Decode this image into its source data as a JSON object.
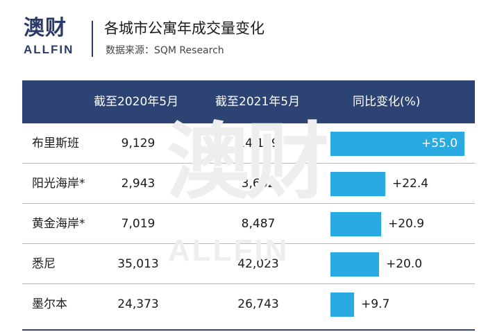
{
  "brand": {
    "logo_cn": "澳财",
    "logo_en": "ALLFIN",
    "watermark_cn": "澳财",
    "watermark_en": "ALLFIN"
  },
  "header": {
    "title": "各城市公寓年成交量变化",
    "source": "数据来源：SQM Research"
  },
  "colors": {
    "header_bg": "#2d4374",
    "bar": "#29aae1",
    "brand": "#2a3a6a"
  },
  "chart_data": {
    "type": "table",
    "columns": [
      "",
      "截至2020年5月",
      "截至2021年5月",
      "同比变化(%)"
    ],
    "rows": [
      {
        "city": "布里斯班",
        "v2020": "9,129",
        "v2021": "14,149",
        "change": 55.0,
        "label": "+55.0"
      },
      {
        "city": "阳光海岸*",
        "v2020": "2,943",
        "v2021": "3,602",
        "change": 22.4,
        "label": "+22.4"
      },
      {
        "city": "黄金海岸*",
        "v2020": "7,019",
        "v2021": "8,487",
        "change": 20.9,
        "label": "+20.9"
      },
      {
        "city": "悉尼",
        "v2020": "35,013",
        "v2021": "42,023",
        "change": 20.0,
        "label": "+20.0"
      },
      {
        "city": "墨尔本",
        "v2020": "24,373",
        "v2021": "26,743",
        "change": 9.7,
        "label": "+9.7"
      }
    ],
    "bar_max": 55.0
  }
}
